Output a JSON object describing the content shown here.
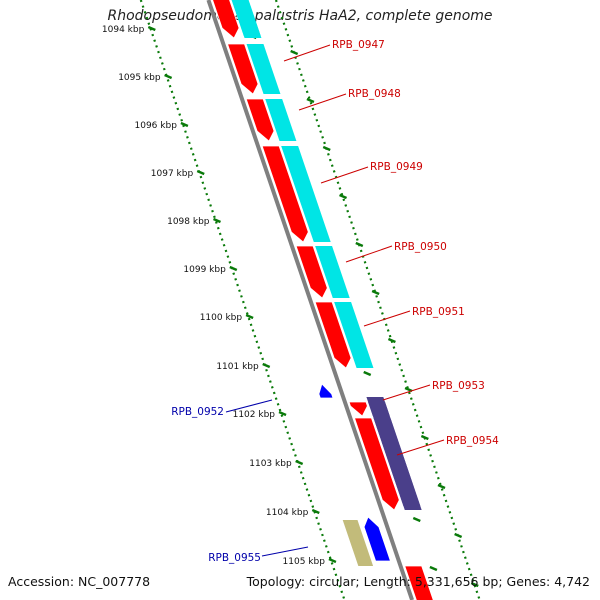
{
  "title": "Rhodopseudomonas palustris HaA2, complete genome",
  "footer": {
    "accession": "Accession: NC_007778",
    "summary": "Topology: circular; Length: 5,331,656 bp; Genes: 4,742"
  },
  "colors": {
    "backbone": "#7f7f7f",
    "forward_gene": "#ff0000",
    "reverse_gene": "#0000ff",
    "cds_cyan": "#00e5e5",
    "cds_purple": "#4a3f8a",
    "cds_khaki": "#c2bb7a",
    "scale_green": "#0a7a0a",
    "forward_label": "#cc0000",
    "reverse_label": "#0000aa"
  },
  "scale": {
    "ticks": [
      "1094 kbp",
      "1095 kbp",
      "1096 kbp",
      "1097 kbp",
      "1098 kbp",
      "1099 kbp",
      "1100 kbp",
      "1101 kbp",
      "1102 kbp",
      "1103 kbp",
      "1104 kbp",
      "1105 kbp"
    ]
  },
  "genes": [
    {
      "label": "RPB_0947",
      "strand": "forward",
      "feature_color": "cyan"
    },
    {
      "label": "RPB_0948",
      "strand": "forward",
      "feature_color": "cyan"
    },
    {
      "label": "RPB_0949",
      "strand": "forward",
      "feature_color": "cyan"
    },
    {
      "label": "RPB_0950",
      "strand": "forward",
      "feature_color": "cyan"
    },
    {
      "label": "RPB_0951",
      "strand": "forward",
      "feature_color": "cyan"
    },
    {
      "label": "RPB_0952",
      "strand": "reverse",
      "feature_color": "none"
    },
    {
      "label": "RPB_0953",
      "strand": "forward",
      "feature_color": "purple"
    },
    {
      "label": "RPB_0954",
      "strand": "forward",
      "feature_color": "purple"
    },
    {
      "label": "RPB_0955",
      "strand": "reverse",
      "feature_color": "khaki"
    }
  ]
}
